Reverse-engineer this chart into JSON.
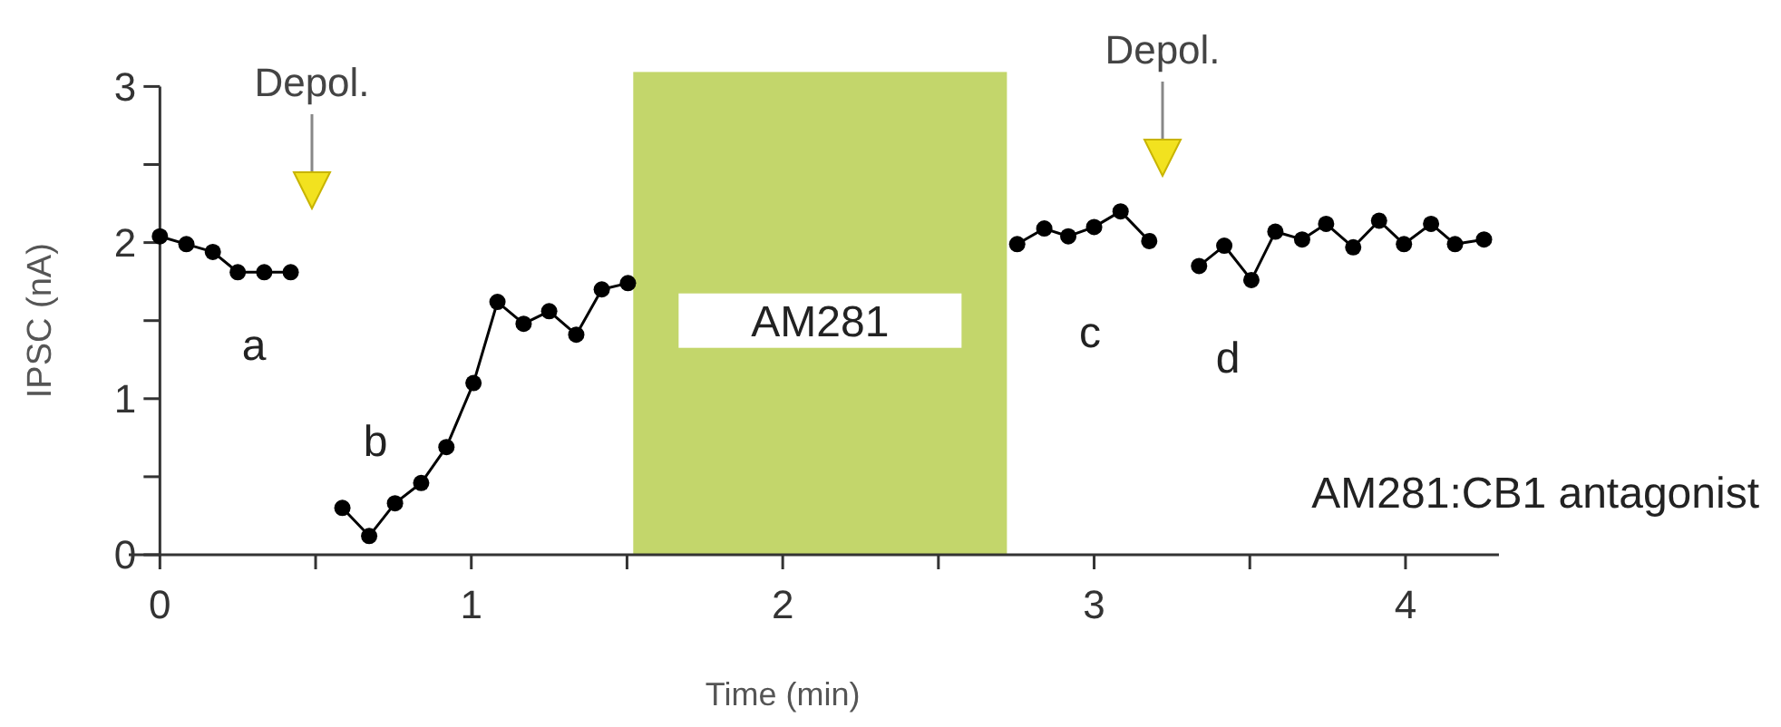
{
  "chart_data": {
    "type": "line",
    "xlabel": "Time (min)",
    "ylabel": "IPSC (nA)",
    "xlim": [
      -0.1,
      4.3
    ],
    "ylim": [
      0,
      3
    ],
    "xticks": [
      0,
      {
        "value": 0.5,
        "label": null
      },
      1,
      {
        "value": 1.5,
        "label": null
      },
      2,
      {
        "value": 2.5,
        "label": null
      },
      3,
      {
        "value": 3.5,
        "label": null
      },
      4
    ],
    "yticks": [
      0,
      {
        "value": 0.5,
        "label": null
      },
      1,
      {
        "value": 1.5,
        "label": null
      },
      2,
      {
        "value": 2.5,
        "label": null
      },
      3
    ],
    "marker": "circle",
    "line_style": "solid",
    "series": [
      {
        "color": "#000000",
        "x": [
          0,
          0.085,
          0.17,
          0.25,
          0.335,
          0.42
        ],
        "values": [
          2.04,
          1.99,
          1.94,
          1.81,
          1.81,
          1.81
        ]
      },
      {
        "color": "#000000",
        "x": [
          0.586,
          0.672,
          0.755,
          0.839,
          0.92,
          1.007,
          1.084,
          1.168,
          1.25,
          1.337,
          1.419,
          1.503
        ],
        "values": [
          0.3,
          0.12,
          0.33,
          0.46,
          0.69,
          1.1,
          1.62,
          1.48,
          1.56,
          1.41,
          1.7,
          1.74
        ]
      },
      {
        "color": "#000000",
        "x": [
          2.753,
          2.84,
          2.917,
          3.0,
          3.085,
          3.177
        ],
        "values": [
          1.99,
          2.09,
          2.04,
          2.1,
          2.2,
          2.01
        ]
      },
      {
        "color": "#000000",
        "x": [
          3.337,
          3.418,
          3.505,
          3.582,
          3.668,
          3.745,
          3.832,
          3.915,
          3.995,
          4.082,
          4.159,
          4.252
        ],
        "values": [
          1.85,
          1.98,
          1.76,
          2.07,
          2.02,
          2.12,
          1.97,
          2.14,
          1.99,
          2.12,
          1.99,
          2.02
        ]
      }
    ],
    "bands": [
      {
        "axis": "x",
        "from": 1.52,
        "to": 2.72,
        "label": "AM281",
        "color": "#c3d66b"
      }
    ],
    "annotations": [
      "Depol.",
      "Depol.",
      "a",
      "b",
      "c",
      "d",
      "AM281:CB1 antagonist"
    ]
  }
}
